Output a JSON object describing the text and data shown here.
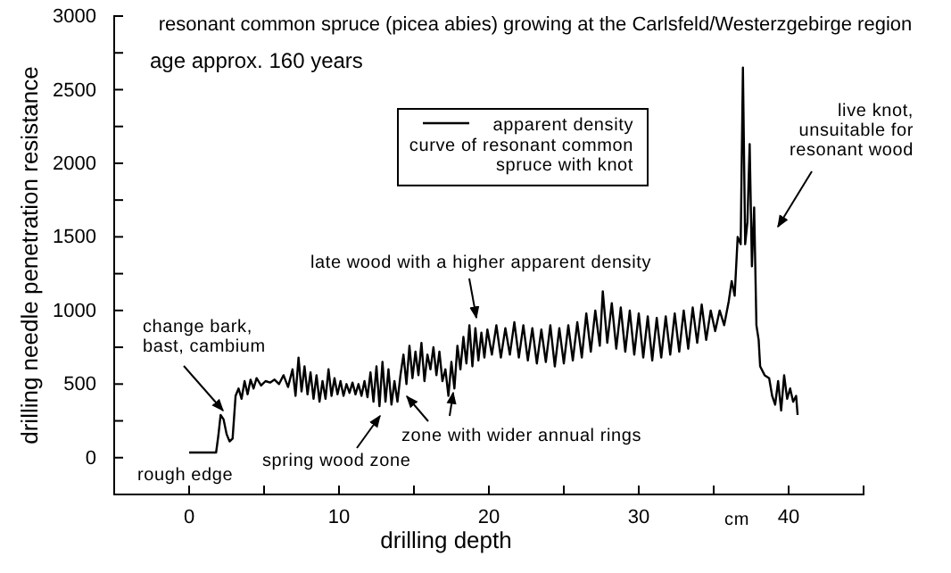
{
  "chart_data": {
    "type": "line",
    "title": "resonant common spruce (picea abies) growing at the Carlsfeld/Westerzgebirge region",
    "subtitle": "age approx. 160 years",
    "xlabel": "drilling depth",
    "ylabel": "drilling needle penetration resistance",
    "annotations": [
      "change bark,\nbast, cambium",
      "rough edge",
      "spring wood zone",
      "zone with wider annual rings",
      "late wood with a higher apparent density",
      "live knot,\nunsuitable for\nresonant wood",
      "cm"
    ],
    "xlim": [
      -5,
      45
    ],
    "ylim": [
      -250,
      3000
    ],
    "xticks": [
      0,
      {
        "value": 5,
        "label": null
      },
      10,
      {
        "value": 15,
        "label": null
      },
      20,
      {
        "value": 25,
        "label": null
      },
      30,
      {
        "value": 35,
        "label": null
      },
      40,
      {
        "value": 45,
        "label": null
      }
    ],
    "yticks": [
      0,
      {
        "value": 250,
        "label": null
      },
      500,
      {
        "value": 750,
        "label": null
      },
      1000,
      {
        "value": 1250,
        "label": null
      },
      1500,
      {
        "value": 1750,
        "label": null
      },
      2000,
      {
        "value": 2250,
        "label": null
      },
      2500,
      {
        "value": 2750,
        "label": null
      },
      3000
    ],
    "grid": false,
    "legend": "top",
    "marker": "none",
    "line_style": "solid",
    "series": [
      {
        "name": "apparent density\ncurve of resonant common\nspruce with knot",
        "color": "#000000",
        "x": [
          0,
          1.8,
          1.95,
          2.1,
          2.3,
          2.5,
          2.7,
          2.9,
          3.1,
          3.3,
          3.5,
          3.7,
          3.9,
          4.1,
          4.3,
          4.5,
          4.8,
          5.1,
          5.4,
          5.7,
          6.0,
          6.3,
          6.6,
          6.9,
          7.1,
          7.3,
          7.5,
          7.7,
          7.9,
          8.1,
          8.3,
          8.5,
          8.7,
          8.9,
          9.1,
          9.3,
          9.5,
          9.7,
          9.9,
          10.1,
          10.3,
          10.5,
          10.7,
          10.9,
          11.1,
          11.3,
          11.5,
          11.7,
          11.9,
          12.1,
          12.3,
          12.5,
          12.7,
          12.9,
          13.1,
          13.3,
          13.5,
          13.7,
          13.9,
          14.1,
          14.3,
          14.5,
          14.7,
          14.9,
          15.1,
          15.3,
          15.5,
          15.7,
          15.9,
          16.1,
          16.3,
          16.5,
          16.7,
          16.9,
          17.1,
          17.3,
          17.5,
          17.7,
          17.9,
          18.1,
          18.3,
          18.5,
          18.7,
          18.9,
          19.1,
          19.3,
          19.5,
          19.7,
          19.9,
          20.2,
          20.5,
          20.8,
          21.1,
          21.4,
          21.7,
          22.0,
          22.3,
          22.6,
          22.9,
          23.2,
          23.5,
          23.8,
          24.1,
          24.4,
          24.7,
          25.0,
          25.3,
          25.6,
          25.9,
          26.2,
          26.5,
          26.8,
          27.1,
          27.4,
          27.6,
          27.9,
          28.2,
          28.5,
          28.8,
          29.1,
          29.4,
          29.7,
          30.0,
          30.3,
          30.6,
          30.9,
          31.2,
          31.5,
          31.8,
          32.1,
          32.4,
          32.7,
          33.0,
          33.3,
          33.6,
          33.9,
          34.2,
          34.5,
          34.8,
          35.1,
          35.4,
          35.7,
          36.0,
          36.2,
          36.4,
          36.6,
          36.8,
          36.95,
          37.1,
          37.25,
          37.4,
          37.55,
          37.7,
          37.85,
          38.0,
          38.1,
          38.4,
          38.7,
          38.9,
          39.1,
          39.3,
          39.5,
          39.7,
          39.9,
          40.1,
          40.3,
          40.5,
          40.6
        ],
        "values": [
          35,
          35,
          150,
          290,
          260,
          160,
          110,
          130,
          420,
          470,
          400,
          520,
          430,
          530,
          470,
          540,
          490,
          520,
          510,
          530,
          500,
          560,
          480,
          600,
          420,
          680,
          450,
          620,
          430,
          580,
          400,
          560,
          380,
          520,
          400,
          600,
          420,
          540,
          430,
          520,
          420,
          500,
          440,
          510,
          430,
          500,
          420,
          520,
          410,
          580,
          380,
          620,
          350,
          650,
          380,
          600,
          360,
          520,
          380,
          560,
          700,
          500,
          760,
          540,
          720,
          560,
          780,
          520,
          700,
          600,
          750,
          560,
          720,
          520,
          600,
          420,
          650,
          470,
          760,
          600,
          820,
          640,
          900,
          620,
          880,
          660,
          850,
          680,
          870,
          700,
          900,
          680,
          880,
          700,
          920,
          680,
          900,
          660,
          880,
          640,
          870,
          650,
          900,
          620,
          880,
          640,
          900,
          660,
          920,
          680,
          980,
          720,
          1000,
          760,
          1130,
          780,
          1050,
          740,
          1020,
          720,
          1000,
          700,
          980,
          680,
          960,
          660,
          950,
          680,
          960,
          700,
          980,
          720,
          1000,
          740,
          1020,
          780,
          1040,
          800,
          1000,
          860,
          1000,
          900,
          1060,
          1200,
          1100,
          1500,
          1450,
          2650,
          1450,
          1600,
          2130,
          1300,
          1700,
          900,
          800,
          620,
          560,
          540,
          420,
          360,
          520,
          320,
          560,
          400,
          470,
          380,
          420,
          290
        ]
      }
    ]
  }
}
